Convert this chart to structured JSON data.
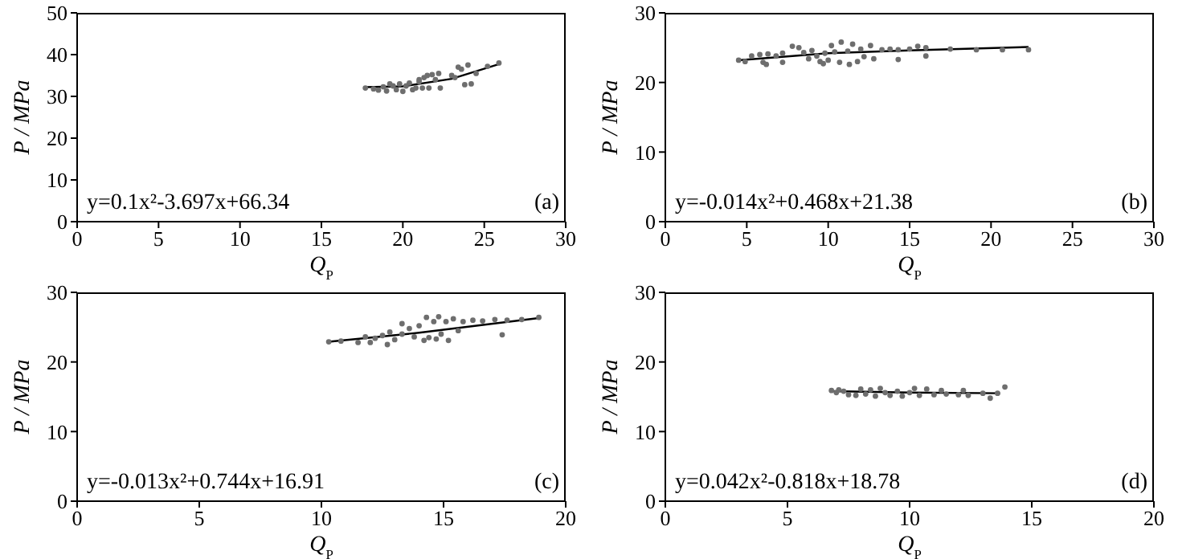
{
  "chart_data": [
    {
      "type": "scatter",
      "xlabel": "Q$_{P}$",
      "ylabel": "P / MPa",
      "xlim": [
        0,
        30
      ],
      "ylim": [
        0,
        50
      ],
      "xticks": [
        0,
        5,
        10,
        15,
        20,
        25,
        30
      ],
      "yticks": [
        0,
        10,
        20,
        30,
        40,
        50
      ],
      "annotations": [
        "y=0.1x²-3.697x+66.34",
        "(a)"
      ],
      "series": [
        {
          "marker": "circle",
          "color": "#6e6e6e",
          "x": [
            17.7,
            18.2,
            18.5,
            18.8,
            19,
            19.2,
            19.4,
            19.6,
            19.8,
            20,
            20.2,
            20.4,
            20.6,
            20.8,
            21,
            21,
            21.2,
            21.3,
            21.5,
            21.6,
            21.8,
            22,
            22.2,
            22.3,
            23,
            23.2,
            23.4,
            23.6,
            23.8,
            24,
            24.2,
            24.5,
            25.2,
            25.9
          ],
          "values": [
            32,
            31.8,
            31.5,
            32.3,
            31.3,
            33,
            32.5,
            31.6,
            33,
            31.2,
            32.5,
            33.2,
            31.6,
            32,
            33.5,
            34,
            32,
            34.5,
            35,
            32,
            35.2,
            34,
            35.5,
            32,
            35,
            34.5,
            37,
            36.5,
            32.8,
            37.5,
            33,
            35.5,
            37.2,
            38
          ]
        },
        {
          "type": "line",
          "marker": "none",
          "color": "#000000",
          "x": [
            17.7,
            20,
            23,
            25.9
          ],
          "values": [
            32.2,
            32.4,
            34.2,
            37.7
          ]
        }
      ]
    },
    {
      "type": "scatter",
      "xlabel": "Q$_{P}$",
      "ylabel": "P / MPa",
      "xlim": [
        0,
        30
      ],
      "ylim": [
        0,
        30
      ],
      "xticks": [
        0,
        5,
        10,
        15,
        20,
        25,
        30
      ],
      "yticks": [
        0,
        10,
        20,
        30
      ],
      "annotations": [
        "y=-0.014x²+0.468x+21.38",
        "(b)"
      ],
      "series": [
        {
          "marker": "circle",
          "color": "#6e6e6e",
          "x": [
            4.5,
            4.9,
            5.3,
            5.8,
            6,
            6.2,
            6.3,
            6.8,
            7.2,
            7.2,
            7.8,
            8.2,
            8.5,
            8.8,
            9,
            9.3,
            9.5,
            9.7,
            9.8,
            10,
            10.2,
            10.4,
            10.7,
            10.8,
            11.2,
            11.3,
            11.5,
            11.8,
            12,
            12.2,
            12.6,
            12.8,
            13.3,
            13.8,
            14.3,
            14.3,
            15,
            15.5,
            16,
            16,
            17.5,
            19.1,
            20.7,
            22.3
          ],
          "values": [
            23.2,
            23,
            23.8,
            24,
            22.9,
            22.6,
            24.1,
            23.8,
            22.9,
            24.2,
            25.2,
            25,
            24.3,
            23.4,
            24.6,
            23.8,
            23,
            22.7,
            24.2,
            23.2,
            25.3,
            24.4,
            22.9,
            25.8,
            24.5,
            22.6,
            25.5,
            23,
            24.8,
            23.7,
            25.3,
            23.4,
            24.7,
            24.8,
            23.3,
            24.7,
            24.8,
            25.2,
            23.8,
            25,
            24.8,
            24.7,
            24.7,
            24.7
          ]
        },
        {
          "type": "line",
          "marker": "none",
          "color": "#000000",
          "x": [
            4.5,
            10,
            15,
            22.3
          ],
          "values": [
            23.2,
            24.2,
            24.6,
            25.1
          ]
        }
      ]
    },
    {
      "type": "scatter",
      "xlabel": "Q$_{P}$",
      "ylabel": "P / MPa",
      "xlim": [
        0,
        20
      ],
      "ylim": [
        0,
        30
      ],
      "xticks": [
        0,
        5,
        10,
        15,
        20
      ],
      "yticks": [
        0,
        10,
        20,
        30
      ],
      "annotations": [
        "y=-0.013x²+0.744x+16.91",
        "(c)"
      ],
      "series": [
        {
          "marker": "circle",
          "color": "#6e6e6e",
          "x": [
            10.3,
            10.8,
            11.5,
            11.8,
            12,
            12.2,
            12.5,
            12.7,
            12.8,
            13,
            13.3,
            13.3,
            13.6,
            13.8,
            14,
            14.2,
            14.3,
            14.4,
            14.6,
            14.7,
            14.8,
            14.9,
            15.1,
            15.2,
            15.4,
            15.6,
            15.8,
            16.2,
            16.6,
            17.1,
            17.4,
            17.6,
            18.2,
            18.9
          ],
          "values": [
            22.9,
            23,
            22.8,
            23.6,
            22.8,
            23.4,
            23.8,
            22.5,
            24.3,
            23.2,
            25.5,
            24,
            24.8,
            23.6,
            25.2,
            23.1,
            26.4,
            23.5,
            25.8,
            23.3,
            26.5,
            24,
            25.8,
            23.1,
            26.2,
            24.5,
            25.8,
            26,
            25.9,
            26.1,
            23.9,
            26,
            26.1,
            26.4
          ]
        },
        {
          "type": "line",
          "marker": "none",
          "color": "#000000",
          "x": [
            10.3,
            14,
            18.9
          ],
          "values": [
            22.9,
            24.2,
            26.3
          ]
        }
      ]
    },
    {
      "type": "scatter",
      "xlabel": "Q$_{P}$",
      "ylabel": "P / MPa",
      "xlim": [
        0,
        20
      ],
      "ylim": [
        0,
        30
      ],
      "xticks": [
        0,
        5,
        10,
        15,
        20
      ],
      "yticks": [
        0,
        10,
        20,
        30
      ],
      "annotations": [
        "y=0.042x²-0.818x+18.78",
        "(d)"
      ],
      "series": [
        {
          "marker": "circle",
          "color": "#6e6e6e",
          "x": [
            6.8,
            7,
            7.1,
            7.3,
            7.5,
            7.8,
            8,
            8.2,
            8.4,
            8.6,
            8.8,
            9,
            9.2,
            9.5,
            9.7,
            10,
            10.2,
            10.4,
            10.7,
            11,
            11.3,
            11.5,
            12,
            12.2,
            12.4,
            13,
            13.3,
            13.6,
            13.9
          ],
          "values": [
            15.9,
            15.6,
            16,
            15.8,
            15.3,
            15.2,
            16.1,
            15.4,
            16,
            15.1,
            16.2,
            15.6,
            15.2,
            15.8,
            15.1,
            15.6,
            16.2,
            15.2,
            16.1,
            15.3,
            15.9,
            15.4,
            15.3,
            15.9,
            15.2,
            15.5,
            14.8,
            15.5,
            16.4
          ]
        },
        {
          "type": "line",
          "marker": "none",
          "color": "#000000",
          "x": [
            6.8,
            10,
            13.7
          ],
          "values": [
            15.8,
            15.6,
            15.5
          ]
        }
      ]
    }
  ]
}
